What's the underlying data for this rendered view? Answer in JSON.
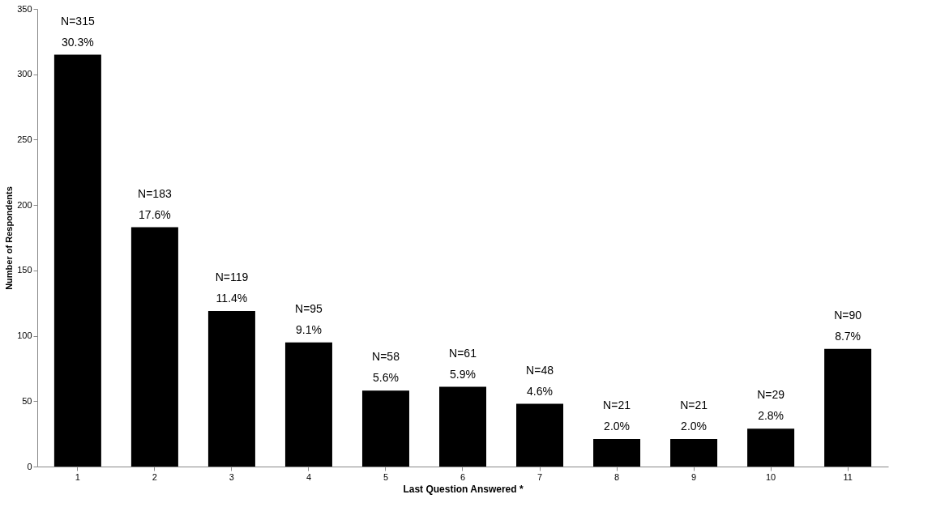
{
  "chart_data": {
    "type": "bar",
    "xlabel": "Last Question Answered *",
    "ylabel": "Number of Respondents",
    "categories": [
      "1",
      "2",
      "3",
      "4",
      "5",
      "6",
      "7",
      "8",
      "9",
      "10",
      "11"
    ],
    "values": [
      315,
      183,
      119,
      95,
      58,
      61,
      48,
      21,
      21,
      29,
      90
    ],
    "value_labels": [
      "N=315\n30.3%",
      "N=183\n17.6%",
      "N=119\n11.4%",
      "N=95\n9.1%",
      "N=58\n5.6%",
      "N=61\n5.9%",
      "N=48\n4.6%",
      "N=21\n2.0%",
      "N=21\n2.0%",
      "N=29\n2.8%",
      "N=90\n8.7%"
    ],
    "color": "#000000",
    "ylim": [
      0,
      350
    ],
    "yticks": [
      0,
      50,
      100,
      150,
      200,
      250,
      300,
      350
    ],
    "grid": false
  }
}
